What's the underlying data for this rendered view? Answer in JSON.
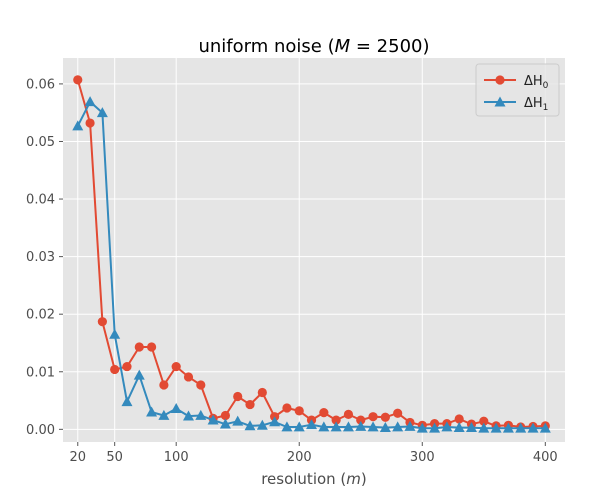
{
  "chart_data": {
    "type": "line",
    "title_prefix": "uniform noise (",
    "title_var": "M",
    "title_suffix": " = 2500)",
    "xlabel_prefix": "resolution (",
    "xlabel_var": "m",
    "xlabel_suffix": ")",
    "ylabel": "",
    "xlim": [
      8,
      416
    ],
    "ylim": [
      -0.0022,
      0.0645
    ],
    "xticks": [
      20,
      50,
      100,
      200,
      300,
      400
    ],
    "xtick_labels": [
      "20",
      "50",
      "100",
      "200",
      "300",
      "400"
    ],
    "yticks": [
      0.0,
      0.01,
      0.02,
      0.03,
      0.04,
      0.05,
      0.06
    ],
    "ytick_labels": [
      "0.00",
      "0.01",
      "0.02",
      "0.03",
      "0.04",
      "0.05",
      "0.06"
    ],
    "grid": true,
    "legend_position": "top-right",
    "x": [
      20,
      30,
      40,
      50,
      60,
      70,
      80,
      90,
      100,
      110,
      120,
      130,
      140,
      150,
      160,
      170,
      180,
      190,
      200,
      210,
      220,
      230,
      240,
      250,
      260,
      270,
      280,
      290,
      300,
      310,
      320,
      330,
      340,
      350,
      360,
      370,
      380,
      390,
      400
    ],
    "series": [
      {
        "name": "ΔH",
        "subscript": "0",
        "color": "#e24a33",
        "marker": "circle",
        "values": [
          0.0607,
          0.0532,
          0.0187,
          0.0104,
          0.0109,
          0.0143,
          0.0143,
          0.0077,
          0.0109,
          0.0091,
          0.0077,
          0.0019,
          0.0024,
          0.0057,
          0.0043,
          0.0064,
          0.0022,
          0.0037,
          0.0032,
          0.0016,
          0.0029,
          0.0016,
          0.0026,
          0.0016,
          0.0022,
          0.0021,
          0.0028,
          0.0012,
          0.0007,
          0.001,
          0.001,
          0.0018,
          0.0009,
          0.0014,
          0.0006,
          0.0007,
          0.0004,
          0.0005,
          0.0006
        ]
      },
      {
        "name": "ΔH",
        "subscript": "1",
        "color": "#348abd",
        "marker": "triangle",
        "values": [
          0.0527,
          0.0569,
          0.055,
          0.0165,
          0.0048,
          0.0094,
          0.003,
          0.0024,
          0.0036,
          0.0023,
          0.0024,
          0.0016,
          0.0009,
          0.0014,
          0.0006,
          0.0007,
          0.0013,
          0.0004,
          0.0004,
          0.0008,
          0.0004,
          0.0004,
          0.0004,
          0.0005,
          0.0004,
          0.0003,
          0.0004,
          0.0005,
          0.0002,
          0.0002,
          0.0004,
          0.0003,
          0.0003,
          0.0002,
          0.0002,
          0.0002,
          0.0002,
          0.0002,
          0.0002
        ]
      }
    ]
  },
  "colors": {
    "plot_background": "#e5e5e5",
    "grid": "#ffffff",
    "tick_text": "#4d4d4d"
  }
}
